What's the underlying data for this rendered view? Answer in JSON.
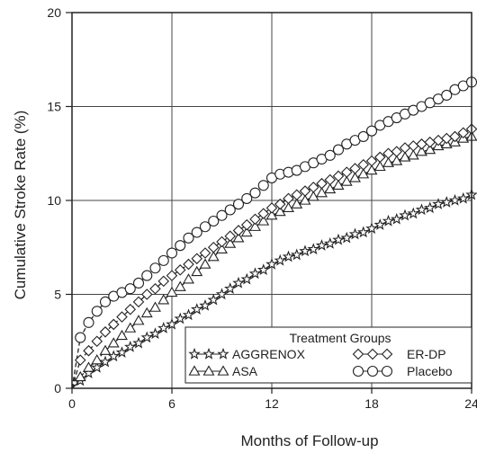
{
  "chart_data": {
    "type": "line",
    "xlabel": "Months of Follow-up",
    "ylabel": "Cumulative Stroke Rate (%)",
    "xlim": [
      0,
      24
    ],
    "ylim": [
      0,
      20
    ],
    "x_ticks": [
      "0",
      "6",
      "12",
      "18",
      "24"
    ],
    "y_ticks": [
      "0",
      "5",
      "10",
      "15",
      "20"
    ],
    "grid": true,
    "legend": {
      "title": "Treatment Groups",
      "placement": "bottom-right",
      "entries": [
        "AGGRENOX",
        "ASA",
        "ER-DP",
        "Placebo"
      ]
    },
    "series": [
      {
        "name": "AGGRENOX",
        "marker": "star",
        "x": [
          0,
          0.5,
          1,
          1.5,
          2,
          2.5,
          3,
          3.5,
          4,
          4.5,
          5,
          5.5,
          6,
          6.5,
          7,
          7.5,
          8,
          8.5,
          9,
          9.5,
          10,
          10.5,
          11,
          11.5,
          12,
          12.5,
          13,
          13.5,
          14,
          14.5,
          15,
          15.5,
          16,
          16.5,
          17,
          17.5,
          18,
          18.5,
          19,
          19.5,
          20,
          20.5,
          21,
          21.5,
          22,
          22.5,
          23,
          23.5,
          24
        ],
        "values": [
          0,
          0.4,
          0.8,
          1.1,
          1.4,
          1.7,
          1.9,
          2.2,
          2.4,
          2.7,
          2.9,
          3.2,
          3.4,
          3.7,
          3.9,
          4.2,
          4.4,
          4.7,
          5.0,
          5.3,
          5.6,
          5.8,
          6.1,
          6.3,
          6.6,
          6.8,
          7.0,
          7.1,
          7.3,
          7.4,
          7.6,
          7.7,
          7.9,
          8.0,
          8.2,
          8.3,
          8.5,
          8.7,
          8.9,
          9.0,
          9.2,
          9.3,
          9.5,
          9.6,
          9.8,
          9.9,
          10.0,
          10.1,
          10.3
        ]
      },
      {
        "name": "ASA",
        "marker": "triangle",
        "x": [
          0,
          0.5,
          1,
          1.5,
          2,
          2.5,
          3,
          3.5,
          4,
          4.5,
          5,
          5.5,
          6,
          6.5,
          7,
          7.5,
          8,
          8.5,
          9,
          9.5,
          10,
          10.5,
          11,
          11.5,
          12,
          12.5,
          13,
          13.5,
          14,
          14.5,
          15,
          15.5,
          16,
          16.5,
          17,
          17.5,
          18,
          18.5,
          19,
          19.5,
          20,
          20.5,
          21,
          21.5,
          22,
          22.5,
          23,
          23.5,
          24
        ],
        "values": [
          0,
          0.6,
          1.1,
          1.5,
          2.0,
          2.4,
          2.8,
          3.2,
          3.6,
          4.0,
          4.3,
          4.7,
          5.1,
          5.4,
          5.8,
          6.2,
          6.6,
          7.0,
          7.4,
          7.7,
          8.0,
          8.3,
          8.6,
          8.9,
          9.2,
          9.4,
          9.6,
          9.8,
          10.0,
          10.2,
          10.4,
          10.6,
          10.8,
          11.0,
          11.2,
          11.4,
          11.6,
          11.8,
          12.0,
          12.1,
          12.3,
          12.4,
          12.6,
          12.7,
          12.9,
          13.0,
          13.1,
          13.3,
          13.4
        ]
      },
      {
        "name": "ER-DP",
        "marker": "diamond",
        "x": [
          0,
          0.5,
          1,
          1.5,
          2,
          2.5,
          3,
          3.5,
          4,
          4.5,
          5,
          5.5,
          6,
          6.5,
          7,
          7.5,
          8,
          8.5,
          9,
          9.5,
          10,
          10.5,
          11,
          11.5,
          12,
          12.5,
          13,
          13.5,
          14,
          14.5,
          15,
          15.5,
          16,
          16.5,
          17,
          17.5,
          18,
          18.5,
          19,
          19.5,
          20,
          20.5,
          21,
          21.5,
          22,
          22.5,
          23,
          23.5,
          24
        ],
        "values": [
          0,
          1.5,
          2.0,
          2.5,
          3.0,
          3.4,
          3.8,
          4.2,
          4.6,
          5.0,
          5.3,
          5.7,
          6.0,
          6.3,
          6.6,
          6.9,
          7.2,
          7.5,
          7.8,
          8.1,
          8.4,
          8.7,
          9.0,
          9.3,
          9.6,
          9.8,
          10.1,
          10.3,
          10.5,
          10.7,
          10.9,
          11.1,
          11.3,
          11.5,
          11.7,
          11.9,
          12.1,
          12.3,
          12.5,
          12.6,
          12.8,
          12.9,
          13.0,
          13.1,
          13.2,
          13.3,
          13.4,
          13.6,
          13.8
        ]
      },
      {
        "name": "Placebo",
        "marker": "circle",
        "x": [
          0,
          0.5,
          1,
          1.5,
          2,
          2.5,
          3,
          3.5,
          4,
          4.5,
          5,
          5.5,
          6,
          6.5,
          7,
          7.5,
          8,
          8.5,
          9,
          9.5,
          10,
          10.5,
          11,
          11.5,
          12,
          12.5,
          13,
          13.5,
          14,
          14.5,
          15,
          15.5,
          16,
          16.5,
          17,
          17.5,
          18,
          18.5,
          19,
          19.5,
          20,
          20.5,
          21,
          21.5,
          22,
          22.5,
          23,
          23.5,
          24
        ],
        "values": [
          0,
          2.7,
          3.5,
          4.1,
          4.6,
          4.9,
          5.1,
          5.3,
          5.6,
          6.0,
          6.4,
          6.8,
          7.2,
          7.6,
          8.0,
          8.3,
          8.6,
          8.9,
          9.2,
          9.5,
          9.8,
          10.1,
          10.4,
          10.8,
          11.2,
          11.4,
          11.5,
          11.6,
          11.8,
          12.0,
          12.2,
          12.4,
          12.7,
          13.0,
          13.2,
          13.4,
          13.7,
          14.0,
          14.2,
          14.4,
          14.6,
          14.8,
          15.0,
          15.2,
          15.4,
          15.6,
          15.9,
          16.1,
          16.3
        ]
      }
    ]
  }
}
